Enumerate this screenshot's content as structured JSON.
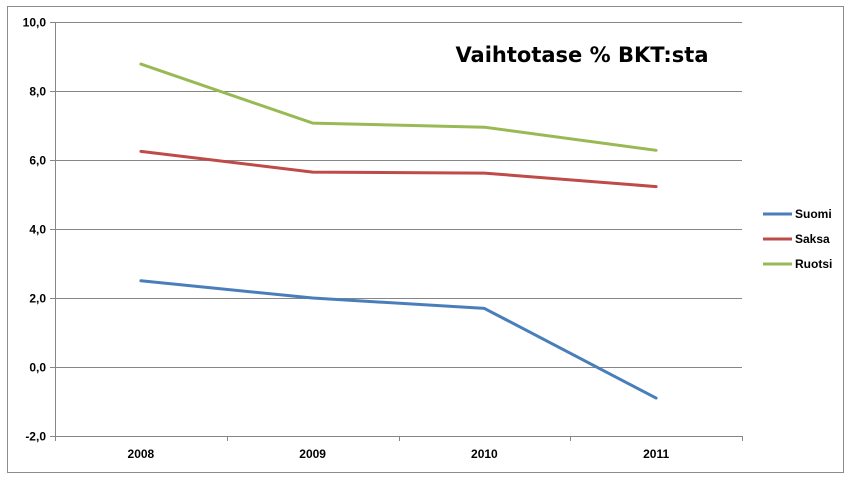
{
  "chart_data": {
    "type": "line",
    "title": "Vaihtotase % BKT:sta",
    "xlabel": "",
    "ylabel": "",
    "categories": [
      "2008",
      "2009",
      "2010",
      "2011"
    ],
    "ylim": [
      -2.0,
      10.0
    ],
    "yticks": [
      "-2,0",
      "0,0",
      "2,0",
      "4,0",
      "6,0",
      "8,0",
      "10,0"
    ],
    "ytick_values": [
      -2,
      0,
      2,
      4,
      6,
      8,
      10
    ],
    "grid": true,
    "legend_position": "right",
    "series": [
      {
        "name": "Suomi",
        "color": "#4a7ebb",
        "values": [
          2.5,
          2.0,
          1.7,
          -0.9
        ]
      },
      {
        "name": "Saksa",
        "color": "#be4b48",
        "values": [
          6.25,
          5.65,
          5.62,
          5.23
        ]
      },
      {
        "name": "Ruotsi",
        "color": "#98b954",
        "values": [
          8.78,
          7.07,
          6.95,
          6.28
        ]
      }
    ]
  }
}
